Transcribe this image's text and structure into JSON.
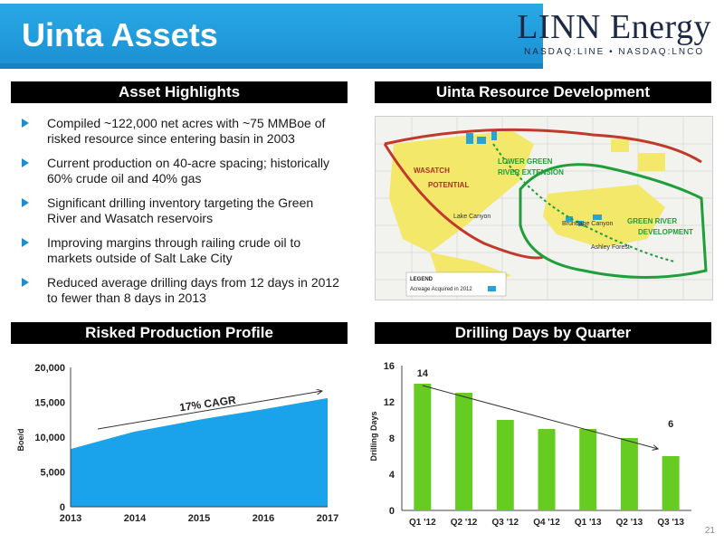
{
  "header": {
    "title": "Uinta Assets",
    "logo_main": "LINN Energy",
    "logo_sub": "NASDAQ:LINE • NASDAQ:LNCO",
    "accent_color": "#1b8fd2"
  },
  "highlights": {
    "heading": "Asset Highlights",
    "bullets": [
      "Compiled ~122,000 net acres with ~75 MMBoe of risked resource since entering basin in 2003",
      "Current production on 40-acre spacing; historically 60% crude oil and 40% gas",
      "Significant drilling inventory targeting the Green River and Wasatch reservoirs",
      "Improving margins through railing crude oil to markets outside of Salt Lake City",
      "Reduced average drilling days from 12 days in 2012 to fewer than 8 days in 2013"
    ]
  },
  "map": {
    "heading": "Uinta Resource Development",
    "labels": {
      "wasatch": "WASATCH",
      "potential": "POTENTIAL",
      "lower_green_1": "LOWER GREEN",
      "lower_green_2": "RIVER EXTENSION",
      "lake_canyon": "Lake Canyon",
      "brundage": "Brundage Canyon",
      "green_river_1": "GREEN RIVER",
      "green_river_2": "DEVELOPMENT",
      "ashley": "Ashley Forest"
    },
    "legend_title": "LEGEND",
    "legend_item": "Acreage Acquired in 2012"
  },
  "production": {
    "heading": "Risked Production Profile"
  },
  "drilling": {
    "heading": "Drilling Days by Quarter"
  },
  "page_number": "21",
  "chart_data": [
    {
      "type": "area",
      "title": "Risked Production Profile",
      "xlabel": "",
      "ylabel": "Boe/d",
      "x": [
        "2013",
        "2014",
        "2015",
        "2016",
        "2017"
      ],
      "values": [
        8300,
        10800,
        12500,
        14000,
        15600
      ],
      "ylim": [
        0,
        20000
      ],
      "yticks": [
        "0",
        "5,000",
        "10,000",
        "15,000",
        "20,000"
      ],
      "annotation": "17% CAGR",
      "color": "#1aa3ea",
      "grid": false
    },
    {
      "type": "bar",
      "title": "Drilling Days by Quarter",
      "xlabel": "",
      "ylabel": "Drilling Days",
      "categories": [
        "Q1 '12",
        "Q2 '12",
        "Q3 '12",
        "Q4 '12",
        "Q1 '13",
        "Q2 '13",
        "Q3 '13"
      ],
      "values": [
        14,
        13,
        10,
        9,
        9,
        8,
        6
      ],
      "data_labels": {
        "0": "14",
        "6": "6"
      },
      "ylim": [
        0,
        16
      ],
      "yticks": [
        "0",
        "4",
        "8",
        "12",
        "16"
      ],
      "color": "#66cc22",
      "grid": false
    }
  ]
}
